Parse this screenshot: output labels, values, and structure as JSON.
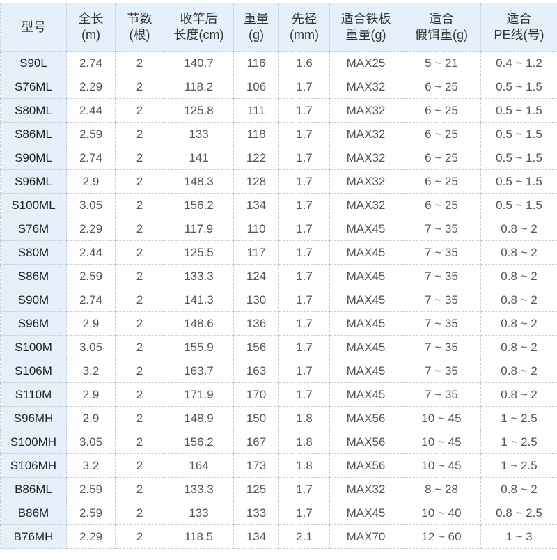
{
  "headers": [
    [
      "型号"
    ],
    [
      "全长",
      "(m)"
    ],
    [
      "节数",
      "(根)"
    ],
    [
      "收竿后",
      "长度(cm)"
    ],
    [
      "重量",
      "(g)"
    ],
    [
      "先径",
      "(mm)"
    ],
    [
      "适合铁板",
      "重量(g)"
    ],
    [
      "适合",
      "假饵重(g)"
    ],
    [
      "适合",
      "PE线(号)"
    ]
  ],
  "rows": [
    [
      "S90L",
      "2.74",
      "2",
      "140.7",
      "116",
      "1.6",
      "MAX25",
      "5 ~ 21",
      "0.4 ~ 1.2"
    ],
    [
      "S76ML",
      "2.29",
      "2",
      "118.2",
      "106",
      "1.7",
      "MAX32",
      "6 ~ 25",
      "0.5 ~ 1.5"
    ],
    [
      "S80ML",
      "2.44",
      "2",
      "125.8",
      "111",
      "1.7",
      "MAX32",
      "6 ~ 25",
      "0.5 ~ 1.5"
    ],
    [
      "S86ML",
      "2.59",
      "2",
      "133",
      "118",
      "1.7",
      "MAX32",
      "6 ~ 25",
      "0.5 ~ 1.5"
    ],
    [
      "S90ML",
      "2.74",
      "2",
      "141",
      "122",
      "1.7",
      "MAX32",
      "6 ~ 25",
      "0.5 ~ 1.5"
    ],
    [
      "S96ML",
      "2.9",
      "2",
      "148.3",
      "128",
      "1.7",
      "MAX32",
      "6 ~ 25",
      "0.5 ~ 1.5"
    ],
    [
      "S100ML",
      "3.05",
      "2",
      "156.2",
      "134",
      "1.7",
      "MAX32",
      "6 ~ 25",
      "0.5 ~ 1.5"
    ],
    [
      "S76M",
      "2.29",
      "2",
      "117.9",
      "110",
      "1.7",
      "MAX45",
      "7 ~ 35",
      "0.8 ~ 2"
    ],
    [
      "S80M",
      "2.44",
      "2",
      "125.5",
      "117",
      "1.7",
      "MAX45",
      "7 ~ 35",
      "0.8 ~ 2"
    ],
    [
      "S86M",
      "2.59",
      "2",
      "133.3",
      "124",
      "1.7",
      "MAX45",
      "7 ~ 35",
      "0.8 ~ 2"
    ],
    [
      "S90M",
      "2.74",
      "2",
      "141.3",
      "130",
      "1.7",
      "MAX45",
      "7 ~ 35",
      "0.8 ~ 2"
    ],
    [
      "S96M",
      "2.9",
      "2",
      "148.6",
      "136",
      "1.7",
      "MAX45",
      "7 ~ 35",
      "0.8 ~ 2"
    ],
    [
      "S100M",
      "3.05",
      "2",
      "155.9",
      "156",
      "1.7",
      "MAX45",
      "7 ~ 35",
      "0.8 ~ 2"
    ],
    [
      "S106M",
      "3.2",
      "2",
      "163.7",
      "163",
      "1.7",
      "MAX45",
      "7 ~ 35",
      "0.8 ~ 2"
    ],
    [
      "S110M",
      "2.9",
      "2",
      "171.9",
      "170",
      "1.7",
      "MAX45",
      "7 ~ 35",
      "0.8 ~ 2"
    ],
    [
      "S96MH",
      "2.9",
      "2",
      "148.9",
      "150",
      "1.8",
      "MAX56",
      "10 ~ 45",
      "1 ~ 2.5"
    ],
    [
      "S100MH",
      "3.05",
      "2",
      "156.2",
      "167",
      "1.8",
      "MAX56",
      "10 ~ 45",
      "1 ~ 2.5"
    ],
    [
      "S106MH",
      "3.2",
      "2",
      "164",
      "173",
      "1.8",
      "MAX56",
      "10 ~ 45",
      "1 ~ 2.5"
    ],
    [
      "B86ML",
      "2.59",
      "2",
      "133.3",
      "125",
      "1.7",
      "MAX32",
      "8 ~ 28",
      "0.8 ~ 2"
    ],
    [
      "B86M",
      "2.59",
      "2",
      "133",
      "133",
      "1.7",
      "MAX45",
      "10 ~ 40",
      "0.8 ~ 2.5"
    ],
    [
      "B76MH",
      "2.29",
      "2",
      "118.5",
      "134",
      "2.1",
      "MAX70",
      "12 ~ 60",
      "1 ~ 3"
    ]
  ],
  "colors": {
    "header_bg": "#e6f0fb",
    "model_col_bg": "#e6f0fb",
    "text": "#555555"
  }
}
